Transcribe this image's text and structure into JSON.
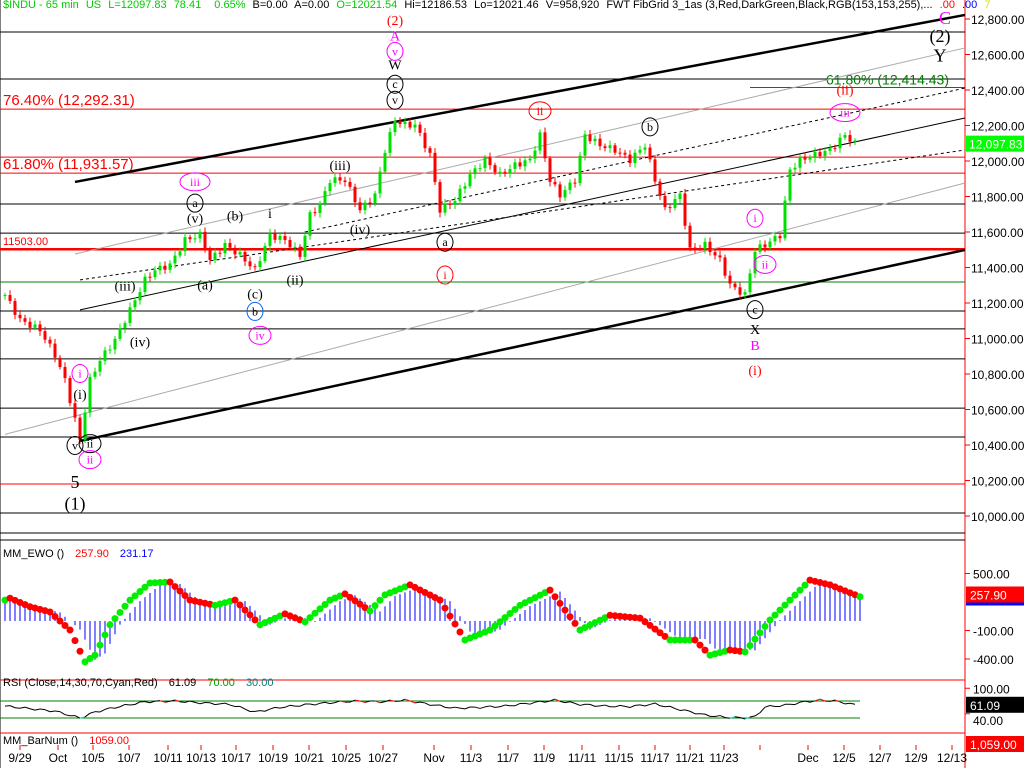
{
  "header": {
    "symbol": "$INDU - 65 min",
    "market": "US",
    "last": "L=12097.83",
    "change": "78.41",
    "pct": "0.65%",
    "bid": "B=0.00",
    "ask": "A=0.00",
    "open": "O=12021.54",
    "high": "Hi=12186.53",
    "low": "Lo=12021.46",
    "volume": "V=958,920",
    "study": "FWT FibGrid 3_1as (3,Red,DarkGreen,Black,RGB(153,153,255),...",
    "v1": ".00",
    "v2": ".00",
    "v3": "7"
  },
  "colors": {
    "up": "#00e000",
    "down": "#ff0000",
    "axis": "#ff0000",
    "hist": "#0000ff"
  },
  "chart_data": [
    {
      "type": "candlestick",
      "name": "$INDU - 65 min",
      "ylim": [
        9850,
        12880
      ],
      "yticks": [
        12800,
        12600,
        12400,
        12200,
        12000,
        11800,
        11600,
        11400,
        11200,
        11000,
        10800,
        10600,
        10400,
        10200,
        10000
      ],
      "ytick_labels": [
        "12,800.00",
        "12,600.00",
        "12,400.00",
        "12,200.00",
        "12,000.00",
        "11,800.00",
        "11,600.00",
        "11,400.00",
        "11,200.00",
        "11,000.00",
        "10,800.00",
        "10,600.00",
        "10,400.00",
        "10,200.00",
        "10,000.00"
      ],
      "last_label": "12,097.83",
      "last_value": 12097.83,
      "closes": [
        [
          0,
          11245
        ],
        [
          3,
          11104
        ],
        [
          7,
          11048
        ],
        [
          10,
          10907
        ],
        [
          12,
          10766
        ],
        [
          14,
          10541
        ],
        [
          15,
          10428
        ],
        [
          17,
          10766
        ],
        [
          19,
          10879
        ],
        [
          22,
          10992
        ],
        [
          25,
          11161
        ],
        [
          28,
          11330
        ],
        [
          30,
          11386
        ],
        [
          33,
          11414
        ],
        [
          36,
          11555
        ],
        [
          39,
          11583
        ],
        [
          41,
          11442
        ],
        [
          44,
          11527
        ],
        [
          47,
          11470
        ],
        [
          50,
          11386
        ],
        [
          53,
          11583
        ],
        [
          56,
          11555
        ],
        [
          59,
          11470
        ],
        [
          61,
          11696
        ],
        [
          63,
          11752
        ],
        [
          65,
          11893
        ],
        [
          68,
          11893
        ],
        [
          71,
          11724
        ],
        [
          74,
          11808
        ],
        [
          76,
          12062
        ],
        [
          78,
          12231
        ],
        [
          80,
          12203
        ],
        [
          82,
          12203
        ],
        [
          85,
          12034
        ],
        [
          87,
          11724
        ],
        [
          90,
          11780
        ],
        [
          93,
          11921
        ],
        [
          96,
          12006
        ],
        [
          99,
          11921
        ],
        [
          102,
          11977
        ],
        [
          105,
          12006
        ],
        [
          107,
          12146
        ],
        [
          109,
          11893
        ],
        [
          111,
          11808
        ],
        [
          114,
          11893
        ],
        [
          116,
          12146
        ],
        [
          119,
          12090
        ],
        [
          122,
          12062
        ],
        [
          125,
          12006
        ],
        [
          128,
          12090
        ],
        [
          130,
          11893
        ],
        [
          132,
          11724
        ],
        [
          135,
          11808
        ],
        [
          137,
          11498
        ],
        [
          140,
          11527
        ],
        [
          143,
          11442
        ],
        [
          145,
          11301
        ],
        [
          148,
          11245
        ],
        [
          150,
          11498
        ],
        [
          152,
          11527
        ],
        [
          155,
          11583
        ],
        [
          157,
          11949
        ],
        [
          159,
          12006
        ],
        [
          162,
          12034
        ],
        [
          165,
          12062
        ],
        [
          168,
          12146
        ],
        [
          170,
          12098
        ]
      ],
      "levels": [
        {
          "p": 12727,
          "c": "#000"
        },
        {
          "p": 12462,
          "c": "#000"
        },
        {
          "p": 12292.31,
          "c": "#ff0000"
        },
        {
          "p": 12022,
          "c": "#ff0000"
        },
        {
          "p": 11931.57,
          "c": "#ff0000"
        },
        {
          "p": 11758,
          "c": "#000"
        },
        {
          "p": 11594,
          "c": "#000"
        },
        {
          "p": 11503,
          "c": "#ff0000",
          "w": 2.5
        },
        {
          "p": 11318,
          "c": "#008000"
        },
        {
          "p": 11155,
          "c": "#000"
        },
        {
          "p": 11054,
          "c": "#000"
        },
        {
          "p": 10885,
          "c": "#000"
        },
        {
          "p": 10608,
          "c": "#000"
        },
        {
          "p": 10445,
          "c": "#000"
        },
        {
          "p": 10180,
          "c": "#ff0000"
        },
        {
          "p": 10017,
          "c": "#000"
        },
        {
          "p": 9904,
          "c": "#000"
        }
      ],
      "fib_labels": [
        {
          "text": "76.40% (12,292.31)",
          "p": 12292.31,
          "c": "#ff0000"
        },
        {
          "text": "61.80% (11,931.57)",
          "p": 11931.57,
          "c": "#ff0000"
        },
        {
          "text": "11503.00",
          "p": 11503,
          "c": "#ff0000",
          "small": true
        }
      ],
      "fib_target": {
        "text": "61.80% (12,414.43)",
        "p": 12414.43,
        "from_bar": 149,
        "c": "#008000"
      },
      "trendlines": [
        {
          "b1": 14,
          "p1": 11882,
          "b2": 192,
          "p2": 12823,
          "c": "#000",
          "w": 2.5
        },
        {
          "b1": 15,
          "p1": 10423,
          "b2": 192,
          "p2": 11499,
          "c": "#000",
          "w": 2.5
        },
        {
          "b1": 15,
          "p1": 11161,
          "b2": 192,
          "p2": 12242,
          "c": "#000",
          "w": 1
        },
        {
          "b1": 15,
          "p1": 11330,
          "b2": 192,
          "p2": 12062,
          "c": "#000",
          "w": 1,
          "dash": true
        },
        {
          "b1": 60,
          "p1": 11600,
          "b2": 192,
          "p2": 12411,
          "c": "#000",
          "w": 1,
          "dash": true
        },
        {
          "b1": 14,
          "p1": 11476,
          "b2": 192,
          "p2": 12637,
          "c": "#aaa",
          "w": 1
        },
        {
          "b1": 0,
          "p1": 10460,
          "b2": 192,
          "p2": 11876,
          "c": "#aaa",
          "w": 1
        }
      ],
      "wave_labels": [
        {
          "t": "(2)",
          "b": 78,
          "p": 12765,
          "c": "#ff0000"
        },
        {
          "t": "A",
          "b": 78,
          "p": 12680,
          "c": "#ff00ff"
        },
        {
          "t": "v",
          "b": 78,
          "p": 12595,
          "c": "#ff00ff",
          "circ": 1
        },
        {
          "t": "W",
          "b": 78,
          "p": 12515,
          "c": "#000"
        },
        {
          "t": "c",
          "b": 78,
          "p": 12410,
          "c": "#000",
          "circ": 1
        },
        {
          "t": "v",
          "b": 78,
          "p": 12320,
          "c": "#000",
          "circ": 1
        },
        {
          "t": "ii",
          "b": 107,
          "p": 12260,
          "c": "#ff0000",
          "circ": 1
        },
        {
          "t": "b",
          "b": 129,
          "p": 12170,
          "c": "#000",
          "circ": 1
        },
        {
          "t": "iii",
          "b": 38,
          "p": 11860,
          "c": "#ff00ff",
          "circ": 1
        },
        {
          "t": "a",
          "b": 38,
          "p": 11740,
          "c": "#000",
          "circ": 1
        },
        {
          "t": "(v)",
          "b": 38,
          "p": 11650,
          "c": "#000"
        },
        {
          "t": "(b)",
          "b": 46,
          "p": 11665,
          "c": "#000"
        },
        {
          "t": "i",
          "b": 53,
          "p": 11680,
          "c": "#000"
        },
        {
          "t": "(iii)",
          "b": 67,
          "p": 11950,
          "c": "#000"
        },
        {
          "t": "(iv)",
          "b": 71,
          "p": 11590,
          "c": "#000"
        },
        {
          "t": "a",
          "b": 88,
          "p": 11520,
          "c": "#000",
          "circ": 1
        },
        {
          "t": "i",
          "b": 88,
          "p": 11335,
          "c": "#ff0000",
          "circ": 1
        },
        {
          "t": "(iii)",
          "b": 24,
          "p": 11270,
          "c": "#000"
        },
        {
          "t": "(iv)",
          "b": 27,
          "p": 10955,
          "c": "#000"
        },
        {
          "t": "(a)",
          "b": 40,
          "p": 11275,
          "c": "#000"
        },
        {
          "t": "(c)",
          "b": 50,
          "p": 11225,
          "c": "#000"
        },
        {
          "t": "b",
          "b": 50,
          "p": 11130,
          "c": "#000",
          "circ": 1,
          "ring": "#0066ff"
        },
        {
          "t": "iv",
          "b": 51,
          "p": 10995,
          "c": "#ff00ff",
          "circ": 1
        },
        {
          "t": "(ii)",
          "b": 58,
          "p": 11305,
          "c": "#000"
        },
        {
          "t": "i",
          "b": 150,
          "p": 11655,
          "c": "#ff00ff",
          "circ": 1
        },
        {
          "t": "ii",
          "b": 152,
          "p": 11395,
          "c": "#ff00ff",
          "circ": 1
        },
        {
          "t": "c",
          "b": 150,
          "p": 11140,
          "c": "#000",
          "circ": 1
        },
        {
          "t": "X",
          "b": 150,
          "p": 11025,
          "c": "#000"
        },
        {
          "t": "B",
          "b": 150,
          "p": 10935,
          "c": "#ff00ff"
        },
        {
          "t": "(i)",
          "b": 150,
          "p": 10795,
          "c": "#ff0000"
        },
        {
          "t": "i",
          "b": 15,
          "p": 10780,
          "c": "#ff00ff",
          "circ": 1
        },
        {
          "t": "(i)",
          "b": 15,
          "p": 10660,
          "c": "#000"
        },
        {
          "t": "v",
          "b": 14,
          "p": 10375,
          "c": "#000",
          "circ": 1
        },
        {
          "t": "ii",
          "b": 17,
          "p": 10385,
          "c": "#000",
          "circ": 1
        },
        {
          "t": "ii",
          "b": 17,
          "p": 10295,
          "c": "#ff00ff",
          "circ": 1
        },
        {
          "t": "5",
          "b": 14,
          "p": 10185,
          "c": "#000",
          "big": 1
        },
        {
          "t": "(1)",
          "b": 14,
          "p": 10065,
          "c": "#000",
          "big": 1
        },
        {
          "t": "(ii)",
          "b": 168,
          "p": 12375,
          "c": "#ff0000"
        },
        {
          "t": "iii",
          "b": 168,
          "p": 12250,
          "c": "#ff00ff",
          "circ": 1
        },
        {
          "t": "C",
          "b": 188,
          "p": 12800,
          "c": "#ff00ff",
          "big": 1
        },
        {
          "t": "(2)",
          "b": 187,
          "p": 12700,
          "c": "#000",
          "big": 1
        },
        {
          "t": "Y",
          "b": 187,
          "p": 12590,
          "c": "#000",
          "big": 1
        }
      ]
    },
    {
      "type": "oscillator",
      "title": "MM_EWO ()",
      "values_shown": [
        "257.90",
        "231.17"
      ],
      "ylim": [
        -520,
        720
      ],
      "yticks": [
        500,
        -100,
        -400
      ],
      "ytick_labels": [
        "500.00",
        "-100.00",
        "-400.00"
      ],
      "last_label": "257.90",
      "last_value": 257.9,
      "series": [
        [
          0,
          220
        ],
        [
          1,
          240
        ],
        [
          5,
          150
        ],
        [
          9,
          95
        ],
        [
          13,
          -95
        ],
        [
          16,
          -430
        ],
        [
          18,
          -360
        ],
        [
          21,
          -40
        ],
        [
          25,
          220
        ],
        [
          29,
          400
        ],
        [
          33,
          410
        ],
        [
          37,
          220
        ],
        [
          42,
          165
        ],
        [
          46,
          220
        ],
        [
          51,
          -40
        ],
        [
          56,
          75
        ],
        [
          60,
          -10
        ],
        [
          65,
          220
        ],
        [
          68,
          285
        ],
        [
          73,
          105
        ],
        [
          76,
          275
        ],
        [
          81,
          380
        ],
        [
          87,
          220
        ],
        [
          92,
          -200
        ],
        [
          97,
          -95
        ],
        [
          103,
          165
        ],
        [
          109,
          325
        ],
        [
          115,
          -95
        ],
        [
          121,
          60
        ],
        [
          127,
          30
        ],
        [
          133,
          -200
        ],
        [
          138,
          -200
        ],
        [
          141,
          -360
        ],
        [
          145,
          -305
        ],
        [
          148,
          -325
        ],
        [
          153,
          10
        ],
        [
          157,
          220
        ],
        [
          161,
          430
        ],
        [
          165,
          380
        ],
        [
          171,
          255
        ]
      ]
    },
    {
      "type": "line",
      "title": "RSI (Close,14,30,70,Cyan,Red)",
      "values_shown": [
        "61.09",
        "70.00",
        "30.00"
      ],
      "ylim": [
        0,
        130
      ],
      "bands": [
        30,
        70
      ],
      "yticks": [
        100,
        40
      ],
      "ytick_labels": [
        "100.00",
        "40.00"
      ],
      "last_label": "61.09",
      "last_value": 61.09,
      "series": [
        [
          0,
          58
        ],
        [
          5,
          52
        ],
        [
          10,
          46
        ],
        [
          15,
          30
        ],
        [
          18,
          44
        ],
        [
          22,
          55
        ],
        [
          28,
          68
        ],
        [
          34,
          70
        ],
        [
          40,
          65
        ],
        [
          45,
          62
        ],
        [
          50,
          44
        ],
        [
          55,
          55
        ],
        [
          60,
          61
        ],
        [
          65,
          66
        ],
        [
          70,
          70
        ],
        [
          75,
          68
        ],
        [
          80,
          72
        ],
        [
          85,
          62
        ],
        [
          90,
          53
        ],
        [
          95,
          55
        ],
        [
          100,
          58
        ],
        [
          105,
          65
        ],
        [
          110,
          72
        ],
        [
          115,
          62
        ],
        [
          120,
          58
        ],
        [
          125,
          57
        ],
        [
          130,
          63
        ],
        [
          135,
          50
        ],
        [
          140,
          37
        ],
        [
          144,
          32
        ],
        [
          148,
          30
        ],
        [
          150,
          33
        ],
        [
          152,
          56
        ],
        [
          156,
          60
        ],
        [
          160,
          68
        ],
        [
          163,
          72
        ],
        [
          166,
          70
        ],
        [
          170,
          61
        ]
      ]
    },
    {
      "type": "label",
      "title": "MM_BarNum ()",
      "value_shown": "1059.00",
      "last_label": "1,059.00"
    }
  ],
  "x_axis": {
    "labels": [
      {
        "t": "9/29",
        "b": 3
      },
      {
        "t": "Oct",
        "b": 10.6
      },
      {
        "t": "10/5",
        "b": 17.6
      },
      {
        "t": "10/7",
        "b": 24.8
      },
      {
        "t": "10/11",
        "b": 32.6
      },
      {
        "t": "10/13",
        "b": 39.2
      },
      {
        "t": "10/17",
        "b": 46.2
      },
      {
        "t": "10/19",
        "b": 53.6
      },
      {
        "t": "10/21",
        "b": 60.8
      },
      {
        "t": "10/25",
        "b": 68.2
      },
      {
        "t": "10/27",
        "b": 75.6
      },
      {
        "t": "Nov",
        "b": 85.8
      },
      {
        "t": "11/3",
        "b": 93.2
      },
      {
        "t": "11/7",
        "b": 100.6
      },
      {
        "t": "11/9",
        "b": 107.8
      },
      {
        "t": "11/11",
        "b": 115.4
      },
      {
        "t": "11/15",
        "b": 122.8
      },
      {
        "t": "11/17",
        "b": 130
      },
      {
        "t": "11/21",
        "b": 137
      },
      {
        "t": "11/23",
        "b": 143.8
      },
      {
        "t": "",
        "b": 151
      },
      {
        "t": "Dec",
        "b": 160.6
      },
      {
        "t": "12/5",
        "b": 167.8
      },
      {
        "t": "12/7",
        "b": 175
      },
      {
        "t": "12/9",
        "b": 182.2
      },
      {
        "t": "12/13",
        "b": 189.4
      }
    ]
  }
}
